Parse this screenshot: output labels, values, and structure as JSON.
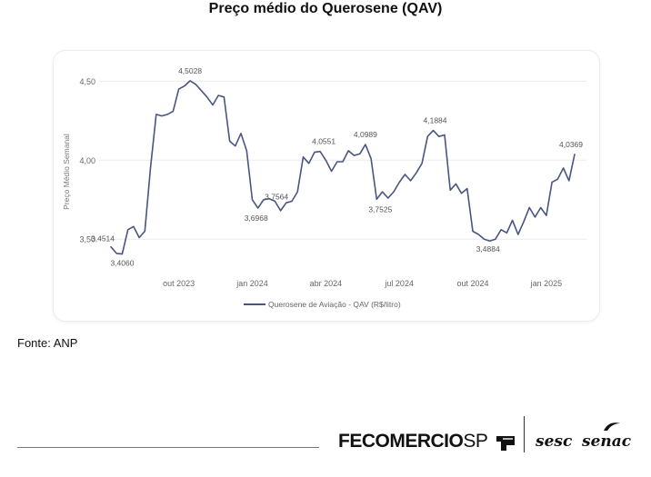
{
  "page": {
    "title": "Preço médio do Querosene (QAV)",
    "source": "Fonte: ANP"
  },
  "branding": {
    "fecomercio_main": "FECOMERCIO",
    "fecomercio_sp": "SP",
    "sesc": "sesc",
    "senac": "senac"
  },
  "chart_data": {
    "type": "line",
    "title": "Preço médio do Querosene (QAV)",
    "xlabel": "",
    "ylabel": "Preço Médio Semanal",
    "ylim": [
      3.3,
      4.6
    ],
    "yticks": [
      "3,50",
      "4,00",
      "4,50"
    ],
    "ytick_values": [
      3.5,
      4.0,
      4.5
    ],
    "xtick_labels": [
      "out 2023",
      "jan 2024",
      "abr 2024",
      "jul 2024",
      "out 2024",
      "jan 2025"
    ],
    "xtick_index": [
      12,
      25,
      38,
      51,
      64,
      77
    ],
    "grid": true,
    "legend": "bottom-center",
    "line_color": "#4a5580",
    "series": [
      {
        "name": "Querosene de Aviação - QAV (R$/litro)",
        "values": [
          3.4514,
          3.41,
          3.406,
          3.56,
          3.58,
          3.51,
          3.55,
          3.95,
          4.29,
          4.28,
          4.29,
          4.31,
          4.45,
          4.47,
          4.5028,
          4.48,
          4.44,
          4.4,
          4.35,
          4.41,
          4.4,
          4.12,
          4.09,
          4.17,
          4.06,
          3.75,
          3.6968,
          3.75,
          3.7564,
          3.74,
          3.68,
          3.73,
          3.74,
          3.8,
          4.02,
          3.98,
          4.05,
          4.0551,
          4.0,
          3.93,
          3.99,
          3.99,
          4.06,
          4.03,
          4.04,
          4.0989,
          4.01,
          3.7525,
          3.8,
          3.76,
          3.8,
          3.86,
          3.91,
          3.87,
          3.92,
          3.98,
          4.15,
          4.1884,
          4.15,
          4.16,
          3.81,
          3.85,
          3.79,
          3.82,
          3.55,
          3.53,
          3.5,
          3.4884,
          3.5,
          3.56,
          3.54,
          3.62,
          3.53,
          3.61,
          3.7,
          3.64,
          3.7,
          3.65,
          3.86,
          3.88,
          3.95,
          3.87,
          4.0369
        ]
      }
    ],
    "annotations": [
      {
        "index": 0,
        "label": "3,4514"
      },
      {
        "index": 2,
        "label": "3,4060"
      },
      {
        "index": 14,
        "label": "4,5028"
      },
      {
        "index": 26,
        "label": "3,6968"
      },
      {
        "index": 28,
        "label": "3,7564"
      },
      {
        "index": 37,
        "label": "4,0551"
      },
      {
        "index": 45,
        "label": "4,0989"
      },
      {
        "index": 47,
        "label": "3,7525"
      },
      {
        "index": 57,
        "label": "4,1884"
      },
      {
        "index": 67,
        "label": "3,4884"
      },
      {
        "index": 82,
        "label": "4,0369"
      }
    ]
  }
}
